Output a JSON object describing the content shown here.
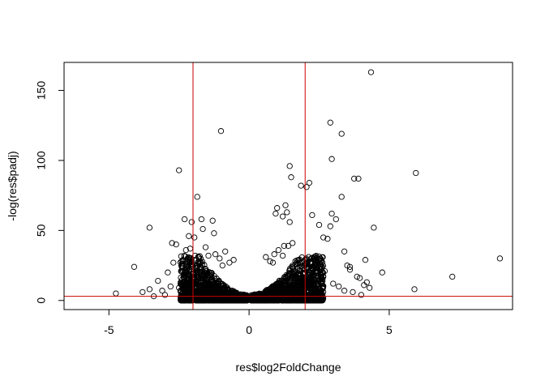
{
  "chart_data": {
    "type": "scatter",
    "title": "",
    "xlabel": "res$log2FoldChange",
    "ylabel": "-log(res$padj)",
    "xlim": [
      -6.6,
      9.4
    ],
    "ylim": [
      -6.5,
      170
    ],
    "xticks": [
      -5,
      0,
      5
    ],
    "yticks": [
      0,
      50,
      100,
      150
    ],
    "grid": false,
    "legend": "none",
    "point_style": "open-circle",
    "point_color": "#000000",
    "threshold_color": "#cc0000",
    "vlines": [
      -2,
      2
    ],
    "hline": 3,
    "series": [
      {
        "x": [
          4.35,
          2.9,
          3.3,
          -1.0,
          2.95,
          1.45,
          1.5,
          -2.5,
          5.95,
          1.85,
          2.05,
          2.15,
          3.9,
          3.75,
          -1.85,
          3.3,
          1.0,
          1.3,
          2.25,
          -1.7,
          -2.3,
          -1.3,
          1.2,
          1.45,
          0.95,
          2.95,
          -2.05,
          1.35,
          2.5,
          -3.55,
          -2.75,
          2.9,
          3.1,
          2.65,
          4.15,
          3.4,
          -1.65,
          -1.25,
          -2.15,
          4.45,
          2.8,
          -2.6,
          1.25,
          1.55,
          -2.25,
          8.95,
          3.5,
          3.6,
          4.75,
          3.85,
          4.1,
          5.9,
          7.25,
          -4.1,
          -4.75,
          -3.55,
          -3.25,
          -2.9,
          -2.7,
          -2.4,
          -2.2,
          -2.1,
          -1.95,
          -1.75,
          -1.55,
          -1.45,
          -1.2,
          -1.05,
          -0.85,
          -0.7,
          -0.55,
          0.6,
          0.75,
          0.9,
          1.05,
          1.2,
          1.4,
          1.65,
          1.8,
          2.2,
          2.4,
          2.7,
          3.0,
          3.6,
          3.95,
          4.3,
          -3.0,
          -2.5,
          -1.6,
          -0.95,
          0.85,
          1.6,
          2.3,
          3.2,
          3.7,
          4.0,
          -3.8,
          -3.4,
          -3.1,
          -2.8,
          -2.35,
          2.6,
          3.4,
          4.2
        ],
        "y": [
          163,
          127,
          119,
          121,
          101,
          96,
          88,
          93,
          91,
          82,
          81,
          84,
          87,
          87,
          74,
          74,
          66,
          68,
          61,
          58,
          58,
          57,
          60,
          56,
          62,
          62,
          56,
          63,
          54,
          52,
          41,
          53,
          58,
          45,
          29,
          35,
          51,
          48,
          46,
          52,
          44,
          40,
          39,
          41,
          36,
          30,
          25,
          22,
          20,
          17,
          11,
          8,
          17,
          24,
          5,
          8,
          14,
          20,
          27,
          26,
          18,
          37,
          45,
          24,
          38,
          32,
          33,
          30,
          35,
          27,
          29,
          31,
          28,
          33,
          36,
          32,
          39,
          28,
          23,
          26,
          18,
          21,
          12,
          24,
          16,
          9,
          4,
          9,
          20,
          25,
          27,
          19,
          15,
          10,
          6,
          4,
          6,
          3,
          7,
          10,
          13,
          12,
          7,
          13
        ]
      }
    ]
  }
}
